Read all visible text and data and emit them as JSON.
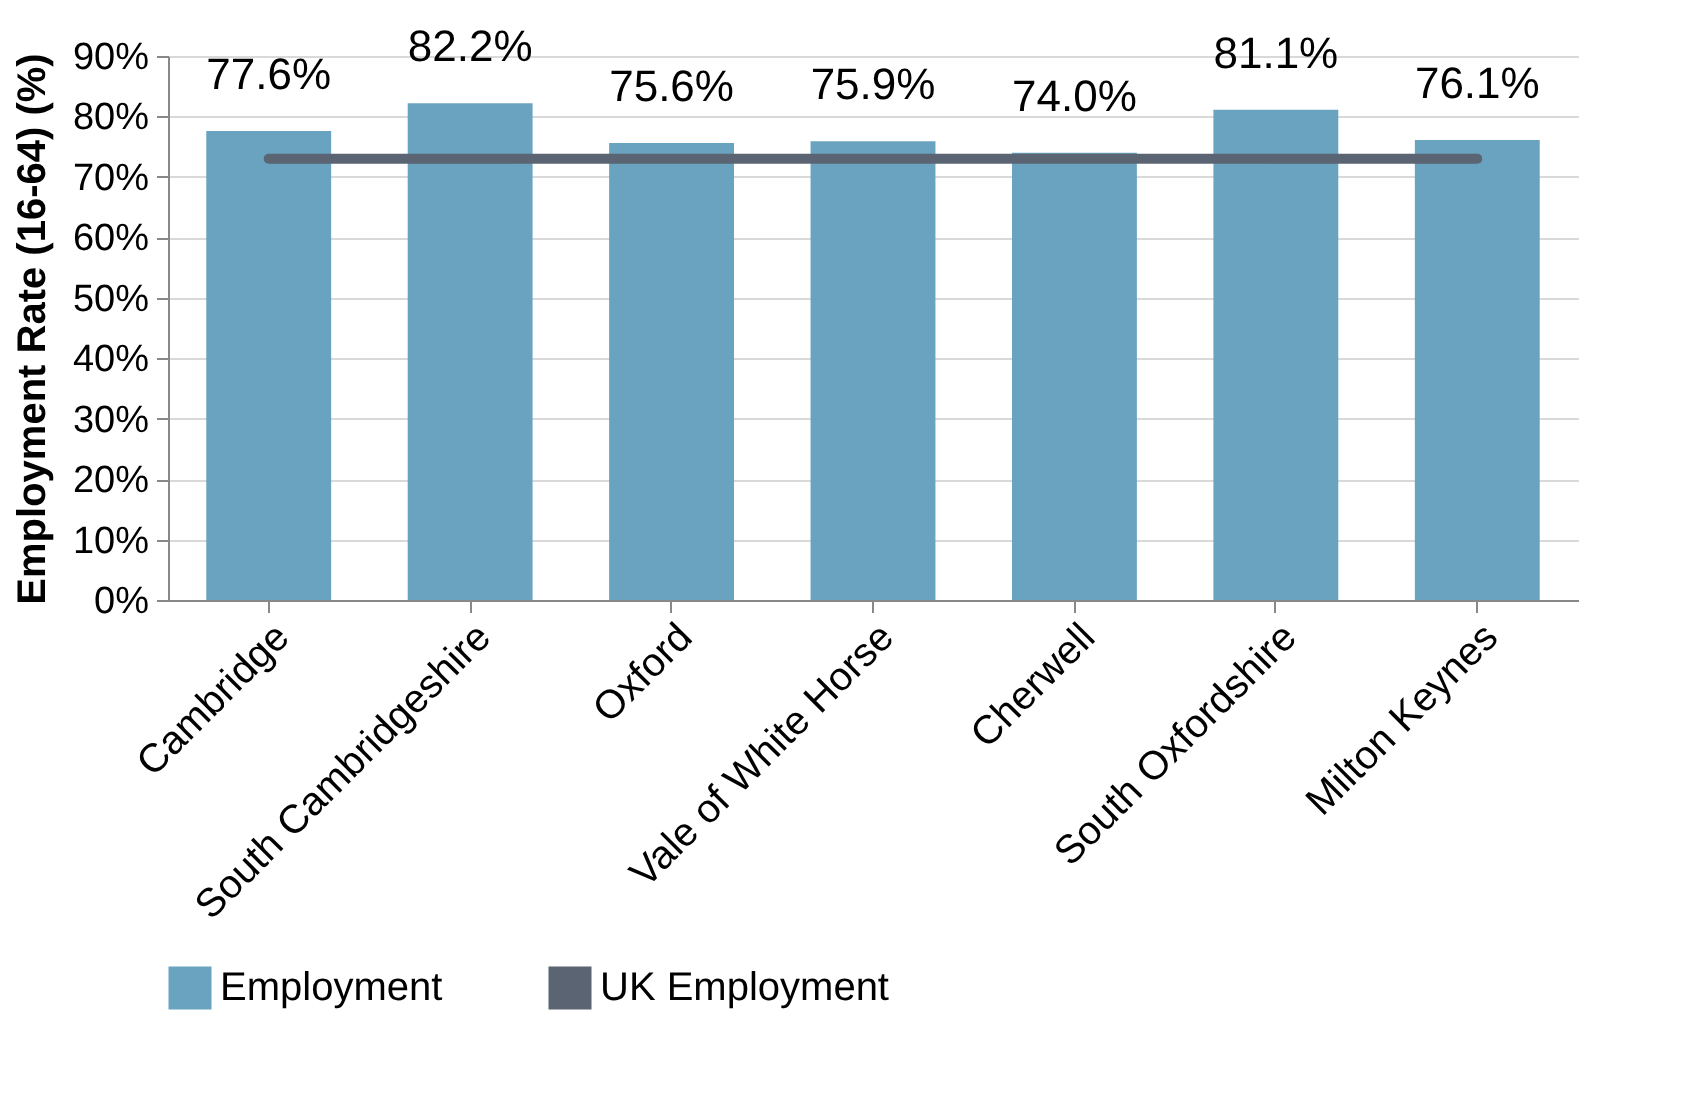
{
  "chart_data": {
    "type": "bar",
    "ylabel": "Employment Rate (16-64) (%)",
    "categories": [
      "Cambridge",
      "South Cambridgeshire",
      "Oxford",
      "Vale of White Horse",
      "Cherwell",
      "South Oxfordshire",
      "Milton Keynes"
    ],
    "series": [
      {
        "name": "Employment",
        "color": "#6aa3bf",
        "values": [
          77.6,
          82.2,
          75.6,
          75.9,
          74.0,
          81.1,
          76.1
        ],
        "value_labels": [
          "77.6%",
          "82.2%",
          "75.6%",
          "75.9%",
          "74.0%",
          "81.1%",
          "76.1%"
        ]
      },
      {
        "name": "UK Employment",
        "type": "line",
        "color": "#5a6472",
        "values": [
          73,
          73,
          73,
          73,
          73,
          73,
          73
        ]
      }
    ],
    "ylim": [
      0,
      90
    ],
    "yticks": [
      {
        "value": 0,
        "label": "0%"
      },
      {
        "value": 10,
        "label": "10%"
      },
      {
        "value": 20,
        "label": "20%"
      },
      {
        "value": 30,
        "label": "30%"
      },
      {
        "value": 40,
        "label": "40%"
      },
      {
        "value": 50,
        "label": "50%"
      },
      {
        "value": 60,
        "label": "60%"
      },
      {
        "value": 70,
        "label": "70%"
      },
      {
        "value": 80,
        "label": "80%"
      },
      {
        "value": 90,
        "label": "90%"
      }
    ],
    "grid": "y",
    "legend": "bottom"
  }
}
